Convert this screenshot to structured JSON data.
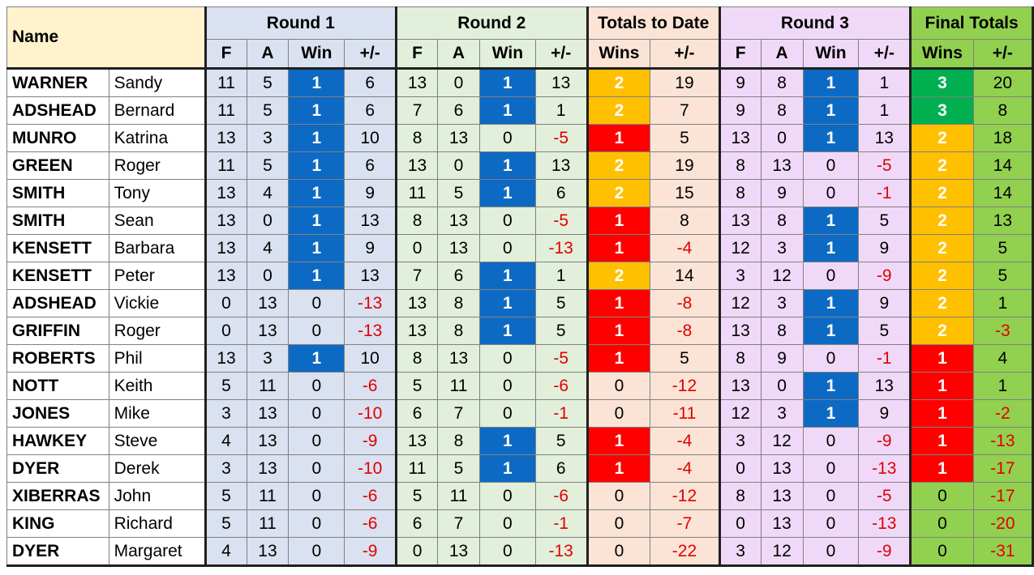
{
  "headers": {
    "name": "Name",
    "groups": [
      "Round 1",
      "Round 2",
      "Totals to Date",
      "Round 3",
      "Final Totals"
    ],
    "round_cols": [
      "F",
      "A",
      "Win",
      "+/-"
    ],
    "total_cols": [
      "Wins",
      "+/-"
    ]
  },
  "colors": {
    "win_blue": "#0d6ac4",
    "wins_orange": "#ffc000",
    "wins_red": "#ff0000",
    "wins_green": "#00b050",
    "negative_text": "#e00000",
    "round1_bg": "#dae1f0",
    "round2_bg": "#e2efda",
    "totals_bg": "#fbe4d5",
    "round3_bg": "#f0d9f8",
    "final_bg": "#92d050",
    "name_header_bg": "#fff2cc"
  },
  "rows": [
    {
      "surname": "WARNER",
      "first": "Sandy",
      "r1": [
        11,
        5,
        1,
        6
      ],
      "r2": [
        13,
        0,
        1,
        13
      ],
      "tot": [
        2,
        19
      ],
      "r3": [
        9,
        8,
        1,
        1
      ],
      "fin": [
        3,
        20
      ]
    },
    {
      "surname": "ADSHEAD",
      "first": "Bernard",
      "r1": [
        11,
        5,
        1,
        6
      ],
      "r2": [
        7,
        6,
        1,
        1
      ],
      "tot": [
        2,
        7
      ],
      "r3": [
        9,
        8,
        1,
        1
      ],
      "fin": [
        3,
        8
      ]
    },
    {
      "surname": "MUNRO",
      "first": "Katrina",
      "r1": [
        13,
        3,
        1,
        10
      ],
      "r2": [
        8,
        13,
        0,
        -5
      ],
      "tot": [
        1,
        5
      ],
      "r3": [
        13,
        0,
        1,
        13
      ],
      "fin": [
        2,
        18
      ]
    },
    {
      "surname": "GREEN",
      "first": "Roger",
      "r1": [
        11,
        5,
        1,
        6
      ],
      "r2": [
        13,
        0,
        1,
        13
      ],
      "tot": [
        2,
        19
      ],
      "r3": [
        8,
        13,
        0,
        -5
      ],
      "fin": [
        2,
        14
      ]
    },
    {
      "surname": "SMITH",
      "first": "Tony",
      "r1": [
        13,
        4,
        1,
        9
      ],
      "r2": [
        11,
        5,
        1,
        6
      ],
      "tot": [
        2,
        15
      ],
      "r3": [
        8,
        9,
        0,
        -1
      ],
      "fin": [
        2,
        14
      ]
    },
    {
      "surname": "SMITH",
      "first": "Sean",
      "r1": [
        13,
        0,
        1,
        13
      ],
      "r2": [
        8,
        13,
        0,
        -5
      ],
      "tot": [
        1,
        8
      ],
      "r3": [
        13,
        8,
        1,
        5
      ],
      "fin": [
        2,
        13
      ]
    },
    {
      "surname": "KENSETT",
      "first": "Barbara",
      "r1": [
        13,
        4,
        1,
        9
      ],
      "r2": [
        0,
        13,
        0,
        -13
      ],
      "tot": [
        1,
        -4
      ],
      "r3": [
        12,
        3,
        1,
        9
      ],
      "fin": [
        2,
        5
      ]
    },
    {
      "surname": "KENSETT",
      "first": "Peter",
      "r1": [
        13,
        0,
        1,
        13
      ],
      "r2": [
        7,
        6,
        1,
        1
      ],
      "tot": [
        2,
        14
      ],
      "r3": [
        3,
        12,
        0,
        -9
      ],
      "fin": [
        2,
        5
      ]
    },
    {
      "surname": "ADSHEAD",
      "first": "Vickie",
      "r1": [
        0,
        13,
        0,
        -13
      ],
      "r2": [
        13,
        8,
        1,
        5
      ],
      "tot": [
        1,
        -8
      ],
      "r3": [
        12,
        3,
        1,
        9
      ],
      "fin": [
        2,
        1
      ]
    },
    {
      "surname": "GRIFFIN",
      "first": "Roger",
      "r1": [
        0,
        13,
        0,
        -13
      ],
      "r2": [
        13,
        8,
        1,
        5
      ],
      "tot": [
        1,
        -8
      ],
      "r3": [
        13,
        8,
        1,
        5
      ],
      "fin": [
        2,
        -3
      ]
    },
    {
      "surname": "ROBERTS",
      "first": "Phil",
      "r1": [
        13,
        3,
        1,
        10
      ],
      "r2": [
        8,
        13,
        0,
        -5
      ],
      "tot": [
        1,
        5
      ],
      "r3": [
        8,
        9,
        0,
        -1
      ],
      "fin": [
        1,
        4
      ]
    },
    {
      "surname": "NOTT",
      "first": "Keith",
      "r1": [
        5,
        11,
        0,
        -6
      ],
      "r2": [
        5,
        11,
        0,
        -6
      ],
      "tot": [
        0,
        -12
      ],
      "r3": [
        13,
        0,
        1,
        13
      ],
      "fin": [
        1,
        1
      ]
    },
    {
      "surname": "JONES",
      "first": "Mike",
      "r1": [
        3,
        13,
        0,
        -10
      ],
      "r2": [
        6,
        7,
        0,
        -1
      ],
      "tot": [
        0,
        -11
      ],
      "r3": [
        12,
        3,
        1,
        9
      ],
      "fin": [
        1,
        -2
      ]
    },
    {
      "surname": "HAWKEY",
      "first": "Steve",
      "r1": [
        4,
        13,
        0,
        -9
      ],
      "r2": [
        13,
        8,
        1,
        5
      ],
      "tot": [
        1,
        -4
      ],
      "r3": [
        3,
        12,
        0,
        -9
      ],
      "fin": [
        1,
        -13
      ]
    },
    {
      "surname": "DYER",
      "first": "Derek",
      "r1": [
        3,
        13,
        0,
        -10
      ],
      "r2": [
        11,
        5,
        1,
        6
      ],
      "tot": [
        1,
        -4
      ],
      "r3": [
        0,
        13,
        0,
        -13
      ],
      "fin": [
        1,
        -17
      ]
    },
    {
      "surname": "XIBERRAS",
      "first": "John",
      "r1": [
        5,
        11,
        0,
        -6
      ],
      "r2": [
        5,
        11,
        0,
        -6
      ],
      "tot": [
        0,
        -12
      ],
      "r3": [
        8,
        13,
        0,
        -5
      ],
      "fin": [
        0,
        -17
      ]
    },
    {
      "surname": "KING",
      "first": "Richard",
      "r1": [
        5,
        11,
        0,
        -6
      ],
      "r2": [
        6,
        7,
        0,
        -1
      ],
      "tot": [
        0,
        -7
      ],
      "r3": [
        0,
        13,
        0,
        -13
      ],
      "fin": [
        0,
        -20
      ]
    },
    {
      "surname": "DYER",
      "first": "Margaret",
      "r1": [
        4,
        13,
        0,
        -9
      ],
      "r2": [
        0,
        13,
        0,
        -13
      ],
      "tot": [
        0,
        -22
      ],
      "r3": [
        3,
        12,
        0,
        -9
      ],
      "fin": [
        0,
        -31
      ]
    }
  ]
}
